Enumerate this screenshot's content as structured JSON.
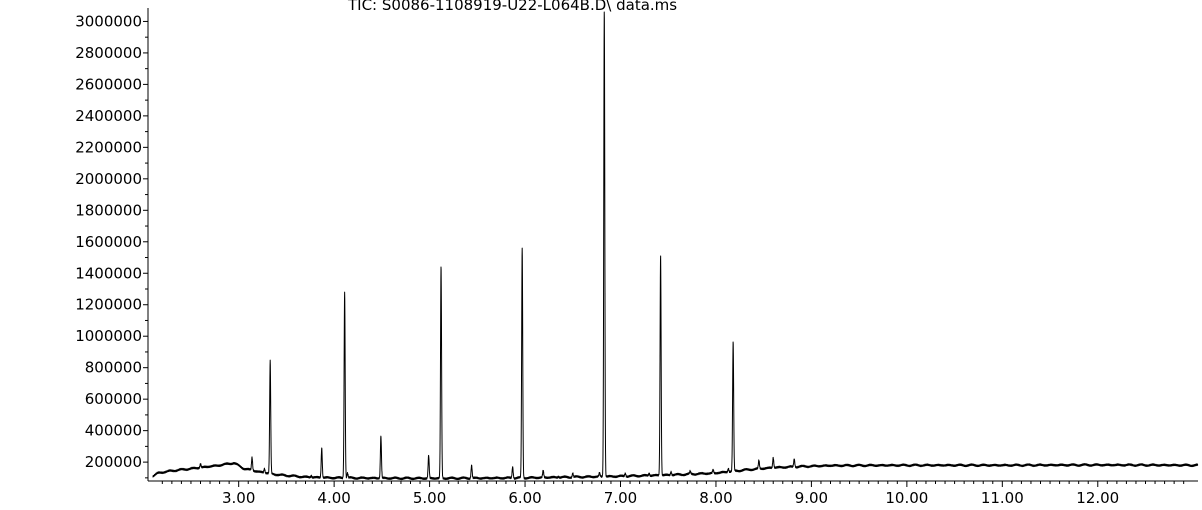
{
  "chart_data": {
    "type": "line",
    "title": "TIC: S0086-1108919-U22-L064B.D\\ data.ms",
    "xlabel": "",
    "ylabel": "",
    "xlim": [
      2.05,
      13.05
    ],
    "ylim": [
      80000,
      3060000
    ],
    "x_ticks": [
      3.0,
      4.0,
      5.0,
      6.0,
      7.0,
      8.0,
      9.0,
      10.0,
      11.0,
      12.0
    ],
    "x_tick_labels": [
      "3.00",
      "4.00",
      "5.00",
      "6.00",
      "7.00",
      "8.00",
      "9.00",
      "10.00",
      "11.00",
      "12.00"
    ],
    "y_ticks": [
      200000,
      400000,
      600000,
      800000,
      1000000,
      1200000,
      1400000,
      1600000,
      1800000,
      2000000,
      2200000,
      2400000,
      2600000,
      2800000,
      3000000
    ],
    "y_tick_labels": [
      "200000",
      "400000",
      "600000",
      "800000",
      "1000000",
      "1200000",
      "1400000",
      "1600000",
      "1800000",
      "2000000",
      "2200000",
      "2400000",
      "2600000",
      "2800000",
      "3000000"
    ],
    "series": [
      {
        "color": "#000000",
        "baseline": [
          [
            2.1,
            110000
          ],
          [
            2.15,
            130000
          ],
          [
            2.3,
            145000
          ],
          [
            2.6,
            165000
          ],
          [
            2.8,
            180000
          ],
          [
            2.95,
            195000
          ],
          [
            3.05,
            160000
          ],
          [
            3.2,
            140000
          ],
          [
            3.4,
            120000
          ],
          [
            3.7,
            105000
          ],
          [
            4.0,
            100000
          ],
          [
            4.5,
            98000
          ],
          [
            5.0,
            97000
          ],
          [
            5.5,
            98000
          ],
          [
            6.0,
            100000
          ],
          [
            6.5,
            105000
          ],
          [
            7.0,
            110000
          ],
          [
            7.5,
            118000
          ],
          [
            8.0,
            130000
          ],
          [
            8.3,
            150000
          ],
          [
            8.6,
            165000
          ],
          [
            8.9,
            172000
          ],
          [
            9.2,
            178000
          ],
          [
            10.0,
            180000
          ],
          [
            11.0,
            180000
          ],
          [
            12.0,
            182000
          ],
          [
            13.05,
            180000
          ]
        ],
        "peaks": [
          [
            2.6,
            190000
          ],
          [
            3.14,
            230000
          ],
          [
            3.27,
            160000
          ],
          [
            3.33,
            840000
          ],
          [
            3.76,
            115000
          ],
          [
            3.87,
            290000
          ],
          [
            4.11,
            1280000
          ],
          [
            4.14,
            130000
          ],
          [
            4.49,
            365000
          ],
          [
            4.99,
            240000
          ],
          [
            5.12,
            1440000
          ],
          [
            5.44,
            180000
          ],
          [
            5.87,
            170000
          ],
          [
            5.97,
            1560000
          ],
          [
            6.19,
            145000
          ],
          [
            6.35,
            110000
          ],
          [
            6.5,
            130000
          ],
          [
            6.78,
            130000
          ],
          [
            6.83,
            3060000
          ],
          [
            7.05,
            130000
          ],
          [
            7.3,
            130000
          ],
          [
            7.42,
            1510000
          ],
          [
            7.53,
            140000
          ],
          [
            7.73,
            140000
          ],
          [
            7.97,
            150000
          ],
          [
            8.13,
            160000
          ],
          [
            8.18,
            960000
          ],
          [
            8.45,
            210000
          ],
          [
            8.6,
            230000
          ],
          [
            8.82,
            220000
          ]
        ]
      }
    ],
    "grid": false,
    "legend": "none"
  }
}
